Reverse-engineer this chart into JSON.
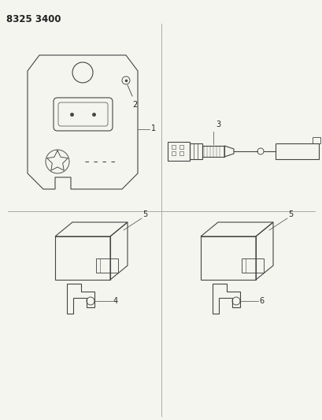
{
  "title": "8325 3400",
  "bg_color": "#f5f5f0",
  "line_color": "#444444",
  "label_color": "#222222",
  "fig_width": 4.1,
  "fig_height": 5.33,
  "dpi": 100,
  "title_fontsize": 8.5
}
